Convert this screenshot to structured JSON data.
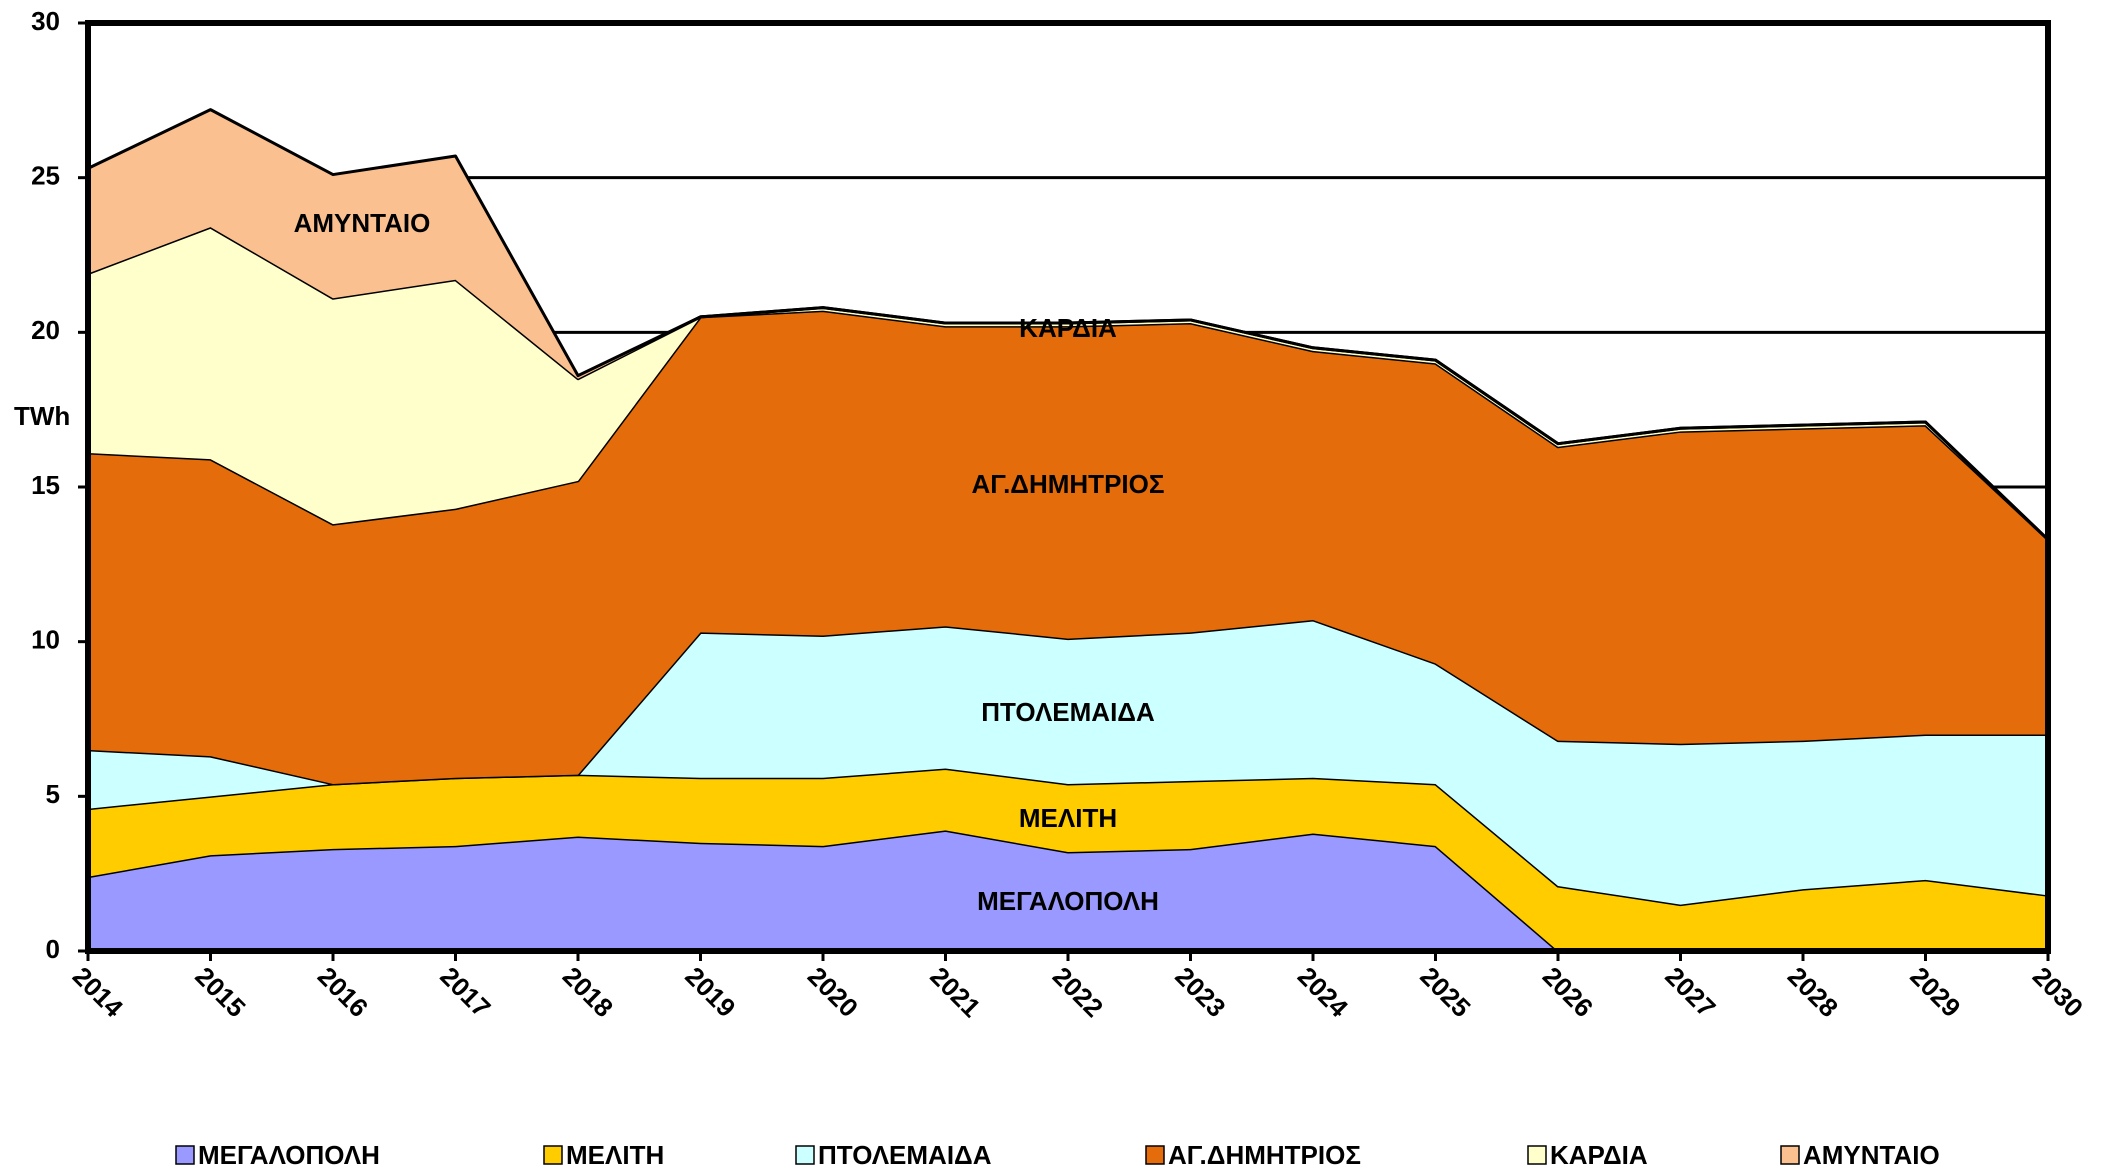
{
  "chart_data": {
    "type": "stacked_area",
    "y_label": "TWh",
    "categories": [
      "2014",
      "2015",
      "2016",
      "2017",
      "2018",
      "2019",
      "2020",
      "2021",
      "2022",
      "2023",
      "2024",
      "2025",
      "2026",
      "2027",
      "2028",
      "2029",
      "2030"
    ],
    "series": [
      {
        "name": "ΜΕΓΑΛΟΠΟΛΗ",
        "color": "#9999ff",
        "values": [
          2.4,
          3.1,
          3.3,
          3.4,
          3.7,
          3.5,
          3.4,
          3.9,
          3.2,
          3.3,
          3.8,
          3.4,
          0,
          0,
          0,
          0,
          0
        ]
      },
      {
        "name": "ΜΕΛΙΤΗ",
        "color": "#ffcc00",
        "values": [
          2.2,
          1.9,
          2.1,
          2.2,
          2.0,
          2.1,
          2.2,
          2.0,
          2.2,
          2.2,
          1.8,
          2.0,
          2.1,
          1.5,
          2.0,
          2.3,
          1.8
        ]
      },
      {
        "name": "ΠΤΟΛΕΜΑΙΔΑ",
        "color": "#ccffff",
        "values": [
          1.9,
          1.3,
          0,
          0,
          0,
          4.7,
          4.6,
          4.6,
          4.7,
          4.8,
          5.1,
          3.9,
          4.7,
          5.2,
          4.8,
          4.7,
          5.2
        ]
      },
      {
        "name": "ΑΓ.ΔΗΜΗΤΡΙΟΣ",
        "color": "#e46c0a",
        "values": [
          9.6,
          9.6,
          8.4,
          8.7,
          9.5,
          10.2,
          10.5,
          9.7,
          10.1,
          10.0,
          8.7,
          9.7,
          9.5,
          10.1,
          10.1,
          10.0,
          6.3
        ]
      },
      {
        "name": "ΚΑΡΔΙΑ",
        "color": "#ffffcc",
        "values": [
          5.8,
          7.5,
          7.3,
          7.4,
          3.3,
          0,
          0.1,
          0.1,
          0.1,
          0.1,
          0.1,
          0.1,
          0.1,
          0.1,
          0.1,
          0.1,
          0
        ]
      },
      {
        "name": "ΑΜΥΝΤΑΙΟ",
        "color": "#fac090",
        "values": [
          3.4,
          3.8,
          4.0,
          4.0,
          0.1,
          0,
          0,
          0,
          0,
          0,
          0,
          0,
          0,
          0,
          0,
          0,
          0
        ]
      }
    ],
    "ylim": [
      0,
      30
    ],
    "yticks": [
      0,
      5,
      10,
      15,
      20,
      25,
      30
    ],
    "grid": true,
    "legend": "bottom"
  }
}
